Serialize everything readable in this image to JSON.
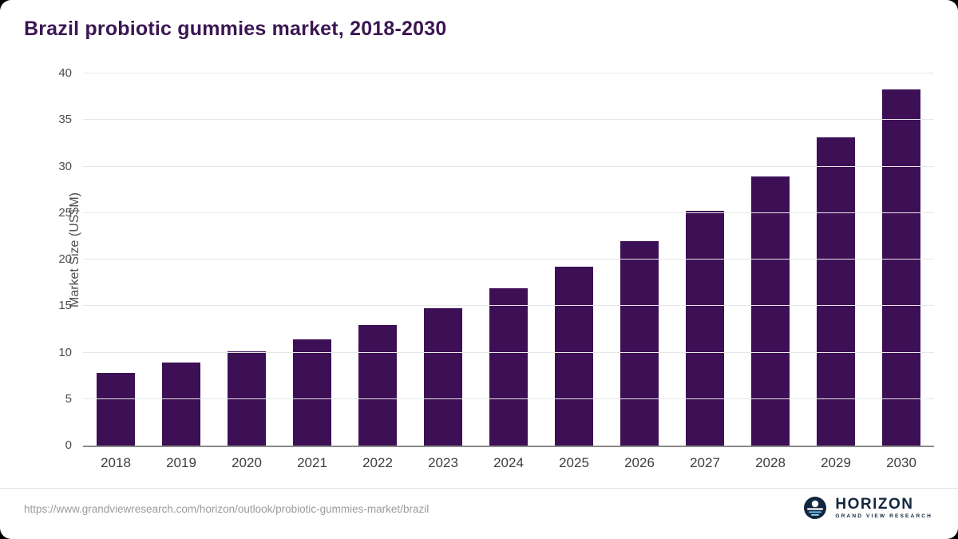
{
  "title": "Brazil probiotic gummies market, 2018-2030",
  "footer": {
    "source_url": "https://www.grandviewresearch.com/horizon/outlook/probiotic-gummies-market/brazil",
    "logo_name": "HORIZON",
    "logo_subtext": "GRAND VIEW RESEARCH"
  },
  "colors": {
    "bar": "#3d1056",
    "title": "#3b1653",
    "axis_text": "#4d4d4d",
    "grid": "#e7e7e7",
    "source_text": "#9b9b9b",
    "logo_navy": "#12263f",
    "logo_accent": "#5bc2e7"
  },
  "chart_data": {
    "type": "bar",
    "title": "Brazil probiotic gummies market, 2018-2030",
    "categories": [
      "2018",
      "2019",
      "2020",
      "2021",
      "2022",
      "2023",
      "2024",
      "2025",
      "2026",
      "2027",
      "2028",
      "2029",
      "2030"
    ],
    "values": [
      7.8,
      8.9,
      10.1,
      11.4,
      13.0,
      14.8,
      16.9,
      19.2,
      22.0,
      25.2,
      28.9,
      33.1,
      38.3
    ],
    "xlabel": "",
    "ylabel": "Market Size (US$M)",
    "ylim": [
      0,
      40
    ],
    "yticks": [
      0,
      5,
      10,
      15,
      20,
      25,
      30,
      35,
      40
    ],
    "grid": true,
    "legend": false,
    "bar_color": "#3d1056"
  }
}
